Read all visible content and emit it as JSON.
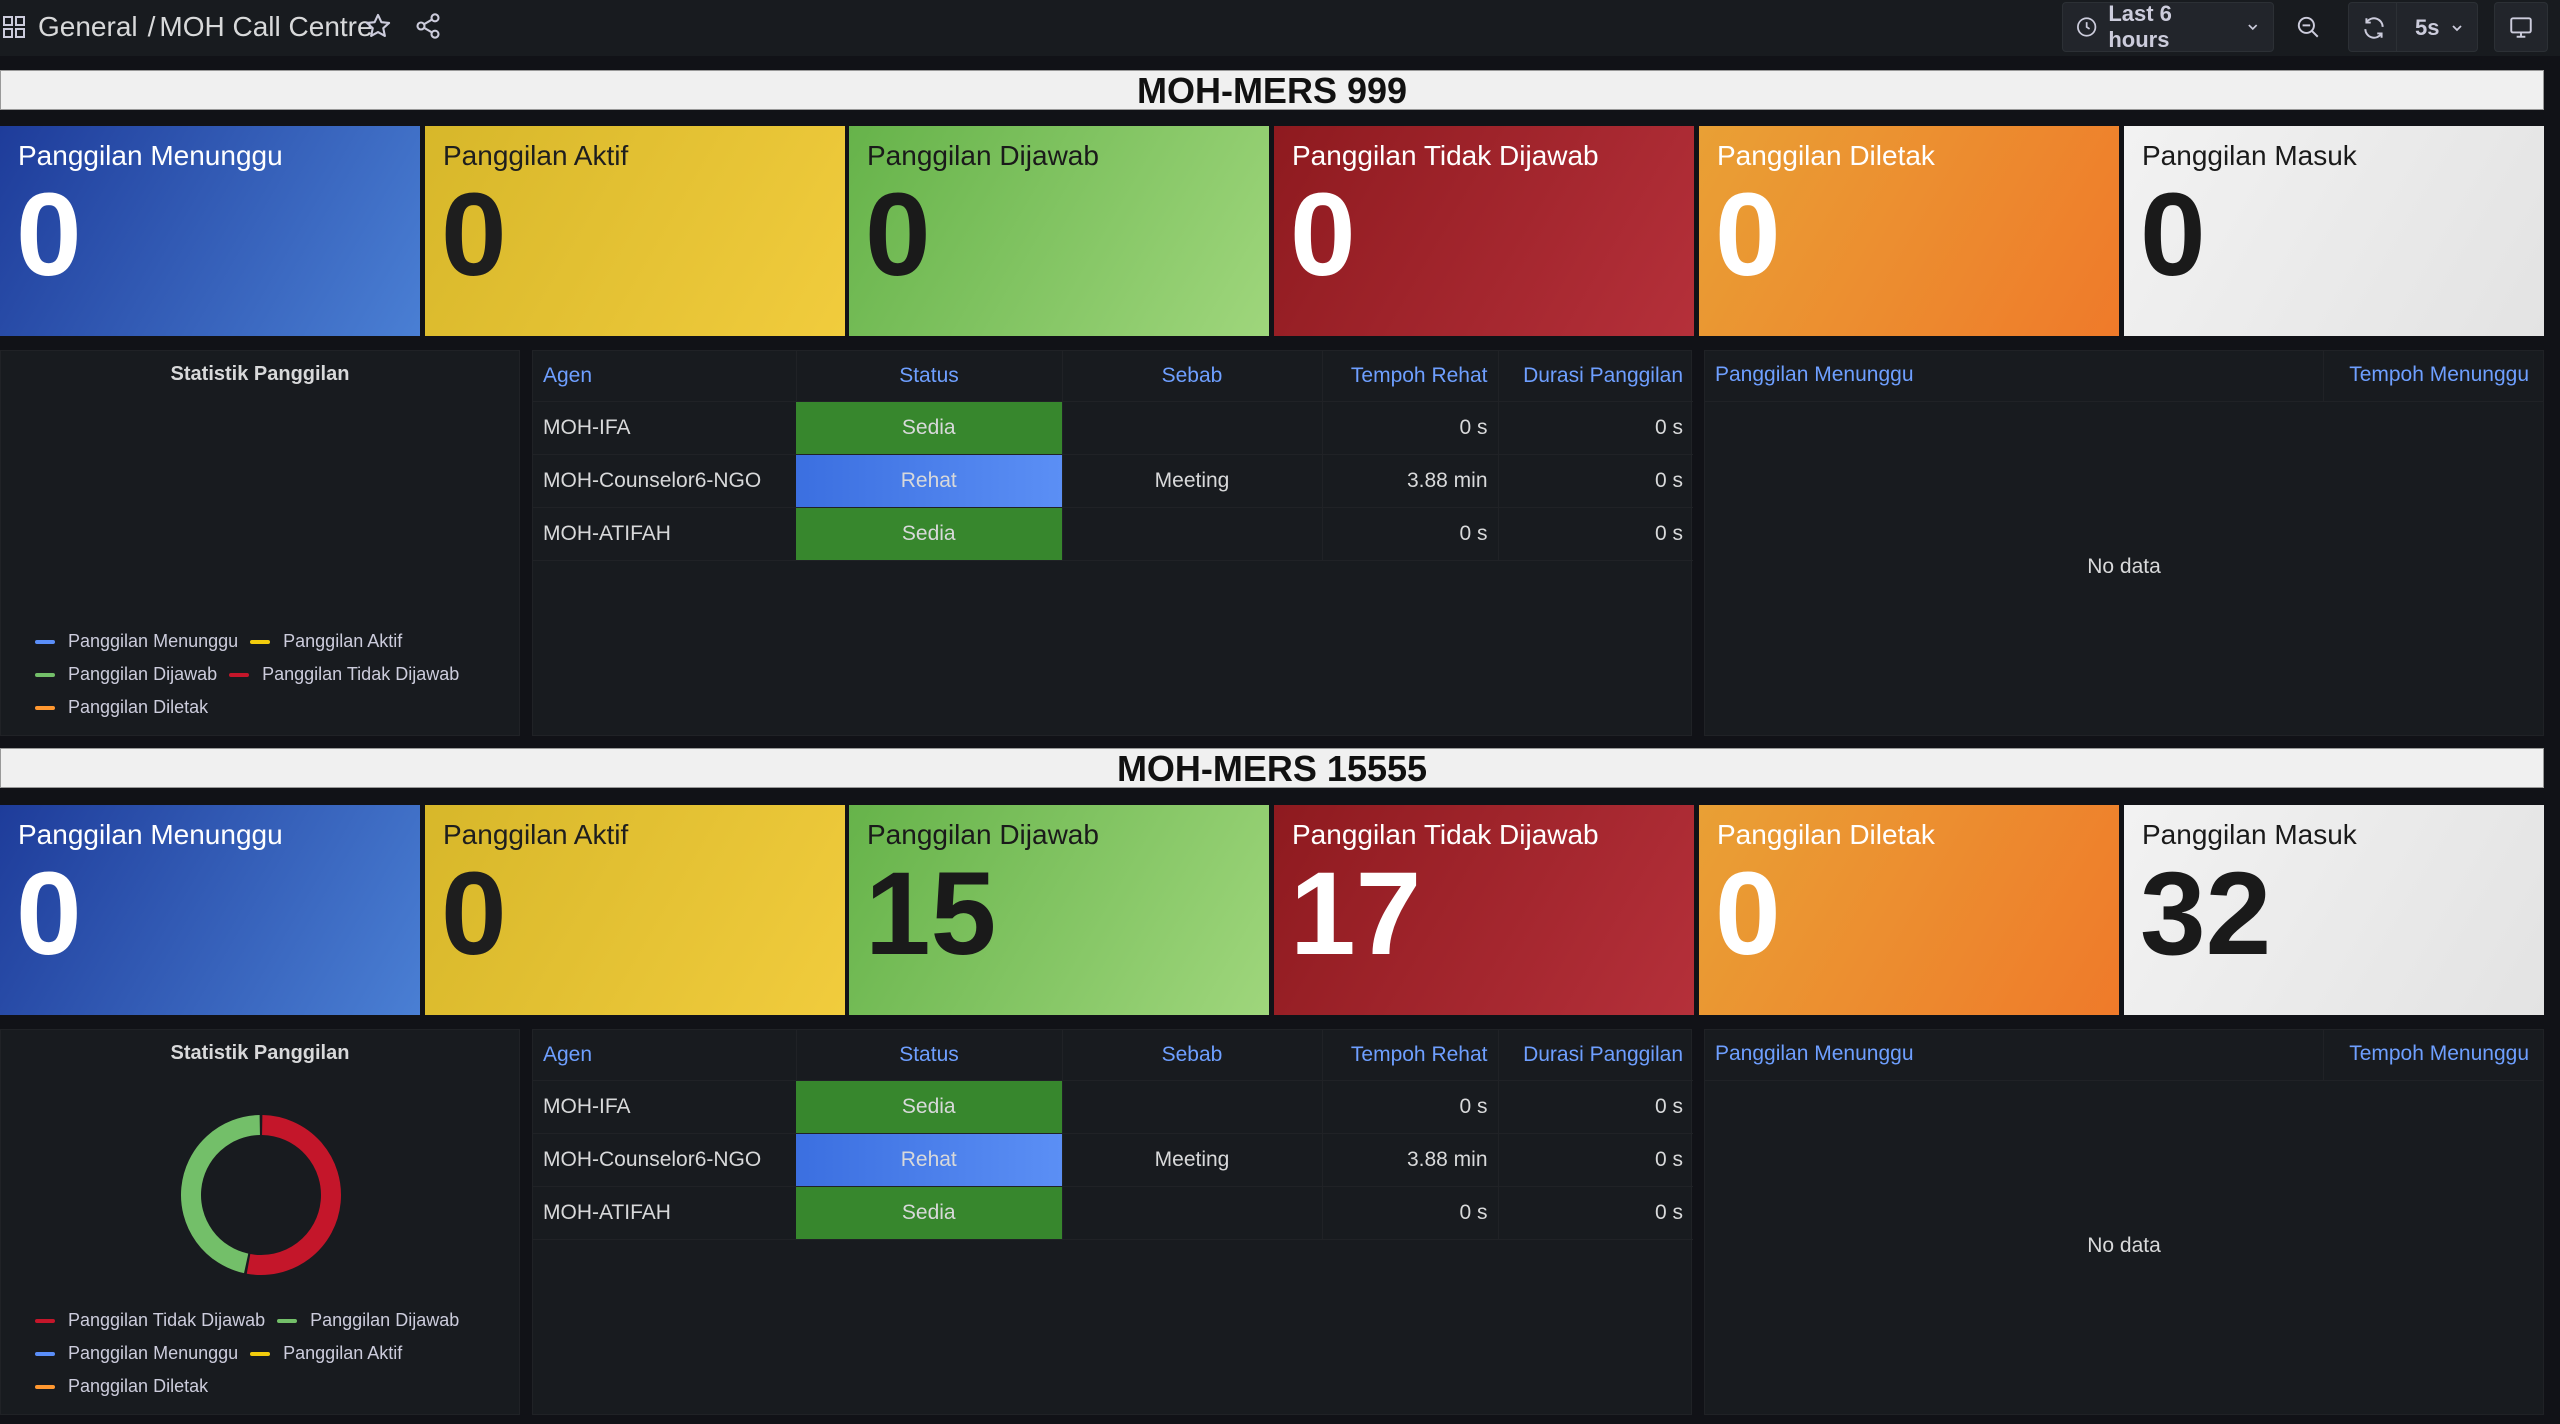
{
  "topbar": {
    "breadcrumb_root": "General",
    "breadcrumb_sep": "/",
    "breadcrumb_page": "MOH Call Centre",
    "time_range": "Last 6 hours",
    "refresh_interval": "5s"
  },
  "sections": [
    {
      "title": "MOH-MERS 999",
      "stats": [
        {
          "label": "Panggilan Menunggu",
          "value": "0"
        },
        {
          "label": "Panggilan Aktif",
          "value": "0"
        },
        {
          "label": "Panggilan Dijawab",
          "value": "0"
        },
        {
          "label": "Panggilan Tidak Dijawab",
          "value": "0"
        },
        {
          "label": "Panggilan Diletak",
          "value": "0"
        },
        {
          "label": "Panggilan Masuk",
          "value": "0"
        }
      ],
      "chart_panel": {
        "title": "Statistik Panggilan",
        "legend_rows": [
          [
            "Panggilan Menunggu",
            "Panggilan Aktif"
          ],
          [
            "Panggilan Dijawab",
            "Panggilan Tidak Dijawab"
          ],
          [
            "Panggilan Diletak"
          ]
        ]
      },
      "agents": {
        "columns": [
          "Agen",
          "Status",
          "Sebab",
          "Tempoh Rehat",
          "Durasi Panggilan"
        ],
        "rows": [
          {
            "agent": "MOH-IFA",
            "status": "Sedia",
            "reason": "",
            "break_time": "0 s",
            "call_duration": "0 s"
          },
          {
            "agent": "MOH-Counselor6-NGO",
            "status": "Rehat",
            "reason": "Meeting",
            "break_time": "3.88 min",
            "call_duration": "0 s"
          },
          {
            "agent": "MOH-ATIFAH",
            "status": "Sedia",
            "reason": "",
            "break_time": "0 s",
            "call_duration": "0 s"
          }
        ]
      },
      "waiting": {
        "col_left": "Panggilan Menunggu",
        "col_right": "Tempoh Menunggu",
        "empty": "No data"
      }
    },
    {
      "title": "MOH-MERS 15555",
      "stats": [
        {
          "label": "Panggilan Menunggu",
          "value": "0"
        },
        {
          "label": "Panggilan Aktif",
          "value": "0"
        },
        {
          "label": "Panggilan Dijawab",
          "value": "15"
        },
        {
          "label": "Panggilan Tidak Dijawab",
          "value": "17"
        },
        {
          "label": "Panggilan Diletak",
          "value": "0"
        },
        {
          "label": "Panggilan Masuk",
          "value": "32"
        }
      ],
      "chart_panel": {
        "title": "Statistik Panggilan",
        "legend_rows": [
          [
            "Panggilan Tidak Dijawab",
            "Panggilan Dijawab"
          ],
          [
            "Panggilan Menunggu",
            "Panggilan Aktif"
          ],
          [
            "Panggilan Diletak"
          ]
        ]
      },
      "agents": {
        "columns": [
          "Agen",
          "Status",
          "Sebab",
          "Tempoh Rehat",
          "Durasi Panggilan"
        ],
        "rows": [
          {
            "agent": "MOH-IFA",
            "status": "Sedia",
            "reason": "",
            "break_time": "0 s",
            "call_duration": "0 s"
          },
          {
            "agent": "MOH-Counselor6-NGO",
            "status": "Rehat",
            "reason": "Meeting",
            "break_time": "3.88 min",
            "call_duration": "0 s"
          },
          {
            "agent": "MOH-ATIFAH",
            "status": "Sedia",
            "reason": "",
            "break_time": "0 s",
            "call_duration": "0 s"
          }
        ]
      },
      "waiting": {
        "col_left": "Panggilan Menunggu",
        "col_right": "Tempoh Menunggu",
        "empty": "No data"
      }
    }
  ],
  "colors": {
    "Panggilan Menunggu": "#5b8ff9",
    "Panggilan Aktif": "#f2cc0c",
    "Panggilan Dijawab": "#73bf69",
    "Panggilan Tidak Dijawab": "#c4162a",
    "Panggilan Diletak": "#ff9830"
  },
  "chart_data": [
    {
      "type": "pie",
      "title": "Statistik Panggilan",
      "categories": [
        "Panggilan Menunggu",
        "Panggilan Aktif",
        "Panggilan Dijawab",
        "Panggilan Tidak Dijawab",
        "Panggilan Diletak"
      ],
      "values": [
        0,
        0,
        0,
        0,
        0
      ]
    },
    {
      "type": "pie",
      "title": "Statistik Panggilan",
      "categories": [
        "Panggilan Tidak Dijawab",
        "Panggilan Dijawab",
        "Panggilan Menunggu",
        "Panggilan Aktif",
        "Panggilan Diletak"
      ],
      "values": [
        17,
        15,
        0,
        0,
        0
      ]
    }
  ]
}
